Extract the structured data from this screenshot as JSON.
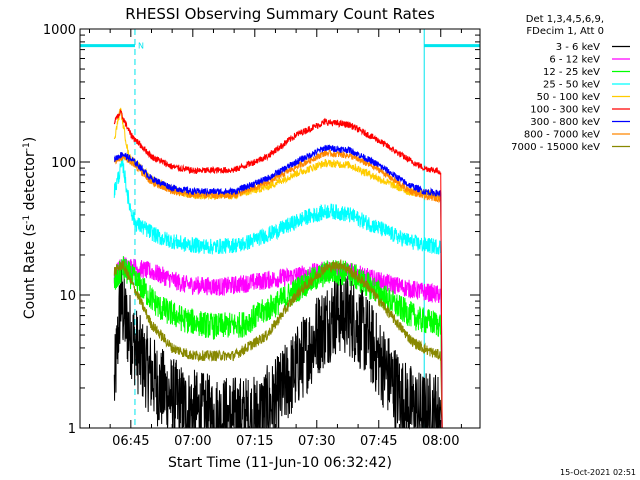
{
  "chart_data": {
    "type": "line",
    "title": "RHESSI Observing Summary Count Rates",
    "xlabel": "Start Time (11-Jun-10 06:32:42)",
    "ylabel_prefix": "Count Rate (s",
    "ylabel_sup": "-1",
    "ylabel_suffix": " detector",
    "ylabel_sup2": "-1",
    "ylabel_end": ")",
    "y_scale": "log",
    "ylim": [
      1,
      1000
    ],
    "xlim": [
      "06:32:42",
      "08:09:30"
    ],
    "y_ticks": [
      {
        "v": 1,
        "label": "1"
      },
      {
        "v": 10,
        "label": "10"
      },
      {
        "v": 100,
        "label": "100"
      },
      {
        "v": 1000,
        "label": "1000"
      }
    ],
    "x_ticks": [
      {
        "t": "06:45",
        "label": "06:45"
      },
      {
        "t": "07:00",
        "label": "07:00"
      },
      {
        "t": "07:15",
        "label": "07:15"
      },
      {
        "t": "07:30",
        "label": "07:30"
      },
      {
        "t": "07:45",
        "label": "07:45"
      },
      {
        "t": "08:00",
        "label": "08:00"
      }
    ],
    "legend_header": [
      "Det 1,3,4,5,6,9,",
      "FDecim 1, Att 0"
    ],
    "legend_placement": "right",
    "series": [
      {
        "name": "3 - 6 keV",
        "color": "#000000",
        "start": "06:41:00",
        "end": "08:00:00",
        "noise": 0.32,
        "points": [
          [
            "06:41:00",
            2
          ],
          [
            "06:42:30",
            9
          ],
          [
            "06:44:00",
            6
          ],
          [
            "06:47:00",
            3.5
          ],
          [
            "06:52:00",
            2
          ],
          [
            "06:58:00",
            1.4
          ],
          [
            "07:05:00",
            1.2
          ],
          [
            "07:15:00",
            1.2
          ],
          [
            "07:20:00",
            1.6
          ],
          [
            "07:25:00",
            2.8
          ],
          [
            "07:30:00",
            5
          ],
          [
            "07:35:00",
            7.5
          ],
          [
            "07:38:00",
            7
          ],
          [
            "07:42:00",
            5
          ],
          [
            "07:47:00",
            2.6
          ],
          [
            "07:51:00",
            1.6
          ],
          [
            "07:55:00",
            1.3
          ],
          [
            "08:00:00",
            1.3
          ]
        ]
      },
      {
        "name": "6 - 12 keV",
        "color": "#ff00ff",
        "start": "06:41:00",
        "end": "08:00:00",
        "noise": 0.07,
        "points": [
          [
            "06:41:00",
            14
          ],
          [
            "06:43:00",
            17
          ],
          [
            "06:50:00",
            15
          ],
          [
            "06:58:00",
            12
          ],
          [
            "07:07:00",
            11.5
          ],
          [
            "07:15:00",
            12.5
          ],
          [
            "07:25:00",
            14
          ],
          [
            "07:33:00",
            15.5
          ],
          [
            "07:38:00",
            15
          ],
          [
            "07:46:00",
            12.5
          ],
          [
            "07:53:00",
            11
          ],
          [
            "08:00:00",
            10
          ]
        ]
      },
      {
        "name": "12 - 25 keV",
        "color": "#00ff00",
        "start": "06:41:00",
        "end": "08:00:00",
        "noise": 0.1,
        "points": [
          [
            "06:41:00",
            12
          ],
          [
            "06:43:00",
            16
          ],
          [
            "06:47:00",
            12
          ],
          [
            "06:52:00",
            8
          ],
          [
            "06:58:00",
            6.5
          ],
          [
            "07:05:00",
            5.8
          ],
          [
            "07:12:00",
            6
          ],
          [
            "07:20:00",
            8.5
          ],
          [
            "07:27:00",
            12
          ],
          [
            "07:33:00",
            15
          ],
          [
            "07:38:00",
            14.5
          ],
          [
            "07:44:00",
            11
          ],
          [
            "07:50:00",
            8
          ],
          [
            "07:55:00",
            6.5
          ],
          [
            "08:00:00",
            6
          ]
        ]
      },
      {
        "name": "25 - 50 keV",
        "color": "#00ffff",
        "start": "06:41:00",
        "end": "08:00:00",
        "noise": 0.06,
        "points": [
          [
            "06:41:00",
            60
          ],
          [
            "06:43:00",
            100
          ],
          [
            "06:44:30",
            50
          ],
          [
            "06:46:00",
            35
          ],
          [
            "06:52:00",
            27
          ],
          [
            "06:58:00",
            24
          ],
          [
            "07:05:00",
            23
          ],
          [
            "07:12:00",
            24
          ],
          [
            "07:20:00",
            30
          ],
          [
            "07:27:00",
            38
          ],
          [
            "07:33:00",
            43
          ],
          [
            "07:38:00",
            40
          ],
          [
            "07:44:00",
            33
          ],
          [
            "07:50:00",
            27
          ],
          [
            "07:55:00",
            24
          ],
          [
            "08:00:00",
            23
          ]
        ]
      },
      {
        "name": "50 - 100 keV",
        "color": "#ffcc00",
        "start": "06:41:00",
        "end": "08:00:00",
        "noise": 0.03,
        "points": [
          [
            "06:41:00",
            150
          ],
          [
            "06:42:30",
            250
          ],
          [
            "06:44:30",
            110
          ],
          [
            "06:50:00",
            75
          ],
          [
            "06:55:00",
            62
          ],
          [
            "07:00:00",
            56
          ],
          [
            "07:10:00",
            56
          ],
          [
            "07:18:00",
            65
          ],
          [
            "07:25:00",
            82
          ],
          [
            "07:32:00",
            98
          ],
          [
            "07:38:00",
            95
          ],
          [
            "07:45:00",
            75
          ],
          [
            "07:52:00",
            60
          ],
          [
            "08:00:00",
            56
          ]
        ]
      },
      {
        "name": "100 - 300 keV",
        "color": "#ff0000",
        "start": "06:41:00",
        "end": "08:00:00",
        "noise": 0.025,
        "points": [
          [
            "06:41:00",
            200
          ],
          [
            "06:42:30",
            235
          ],
          [
            "06:45:00",
            160
          ],
          [
            "06:50:00",
            110
          ],
          [
            "06:55:00",
            92
          ],
          [
            "07:00:00",
            86
          ],
          [
            "07:10:00",
            87
          ],
          [
            "07:18:00",
            110
          ],
          [
            "07:25:00",
            160
          ],
          [
            "07:32:00",
            200
          ],
          [
            "07:38:00",
            190
          ],
          [
            "07:45:00",
            145
          ],
          [
            "07:52:00",
            105
          ],
          [
            "07:56:00",
            90
          ],
          [
            "08:00:00",
            85
          ]
        ]
      },
      {
        "name": "300 - 800 keV",
        "color": "#0000ff",
        "start": "06:41:00",
        "end": "08:00:00",
        "noise": 0.025,
        "points": [
          [
            "06:41:00",
            105
          ],
          [
            "06:43:00",
            115
          ],
          [
            "06:46:00",
            100
          ],
          [
            "06:50:00",
            75
          ],
          [
            "06:55:00",
            64
          ],
          [
            "07:00:00",
            60
          ],
          [
            "07:10:00",
            60
          ],
          [
            "07:18:00",
            75
          ],
          [
            "07:25:00",
            100
          ],
          [
            "07:32:00",
            128
          ],
          [
            "07:38:00",
            123
          ],
          [
            "07:45:00",
            95
          ],
          [
            "07:52:00",
            68
          ],
          [
            "07:56:00",
            60
          ],
          [
            "08:00:00",
            58
          ]
        ]
      },
      {
        "name": "800 - 7000 keV",
        "color": "#ff8800",
        "start": "06:41:00",
        "end": "08:00:00",
        "noise": 0.025,
        "points": [
          [
            "06:41:00",
            100
          ],
          [
            "06:43:00",
            110
          ],
          [
            "06:46:00",
            95
          ],
          [
            "06:50:00",
            70
          ],
          [
            "06:55:00",
            60
          ],
          [
            "07:00:00",
            56
          ],
          [
            "07:10:00",
            56
          ],
          [
            "07:18:00",
            70
          ],
          [
            "07:25:00",
            92
          ],
          [
            "07:32:00",
            117
          ],
          [
            "07:38:00",
            112
          ],
          [
            "07:45:00",
            88
          ],
          [
            "07:52:00",
            62
          ],
          [
            "07:56:00",
            55
          ],
          [
            "08:00:00",
            53
          ]
        ]
      },
      {
        "name": "7000 - 15000 keV",
        "color": "#888800",
        "start": "06:41:00",
        "end": "08:00:00",
        "noise": 0.04,
        "points": [
          [
            "06:41:00",
            15
          ],
          [
            "06:43:00",
            17
          ],
          [
            "06:46:00",
            11
          ],
          [
            "06:50:00",
            6
          ],
          [
            "06:55:00",
            4
          ],
          [
            "07:00:00",
            3.5
          ],
          [
            "07:10:00",
            3.5
          ],
          [
            "07:18:00",
            5
          ],
          [
            "07:25:00",
            10
          ],
          [
            "07:32:00",
            16
          ],
          [
            "07:36:00",
            17
          ],
          [
            "07:42:00",
            12
          ],
          [
            "07:48:00",
            7
          ],
          [
            "07:53:00",
            4.5
          ],
          [
            "07:57:00",
            3.8
          ],
          [
            "08:00:00",
            3.5
          ]
        ]
      }
    ],
    "annotations": {
      "night_bars": [
        {
          "start": "06:32:42",
          "end": "06:46:00",
          "label": "N",
          "y": 750
        },
        {
          "start": "07:56:00",
          "end": "08:09:30",
          "label": "",
          "y": 750
        }
      ],
      "bar_color": "#00e5ee",
      "dashed_lines": [
        "06:46:00",
        "08:09:30"
      ],
      "solid_lines": [
        "06:32:42",
        "07:56:00"
      ]
    },
    "timestamp": "15-Oct-2021 02:51"
  }
}
